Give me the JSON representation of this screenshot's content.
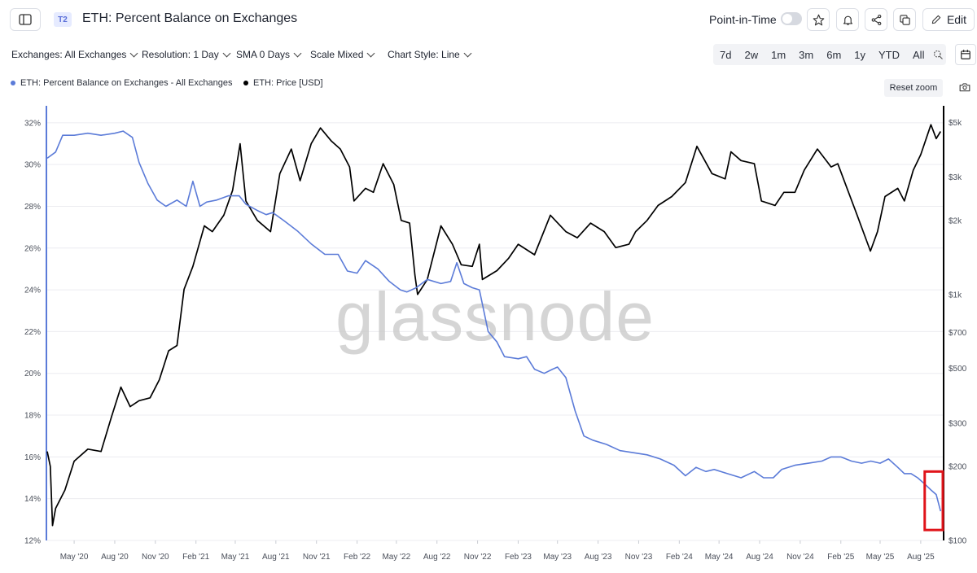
{
  "header": {
    "badge": "T2",
    "title": "ETH: Percent Balance on Exchanges",
    "point_in_time_label": "Point-in-Time",
    "edit_label": "Edit"
  },
  "toolbar": {
    "exchanges": "Exchanges: All Exchanges",
    "resolution": "Resolution: 1 Day",
    "sma": "SMA 0 Days",
    "scale": "Scale Mixed",
    "chart_style": "Chart Style: Line",
    "ranges": [
      "7d",
      "2w",
      "1m",
      "3m",
      "6m",
      "1y",
      "YTD",
      "All"
    ]
  },
  "legend": {
    "series1": "ETH: Percent Balance on Exchanges - All Exchanges",
    "series2": "ETH: Price [USD]",
    "reset_zoom": "Reset zoom"
  },
  "watermark": "glassnode",
  "colors": {
    "balance": "#5b7bd8",
    "price": "#000000",
    "highlight": "#e0141a"
  },
  "chart_data": {
    "type": "line",
    "x_ticks": [
      "May '20",
      "Aug '20",
      "Nov '20",
      "Feb '21",
      "May '21",
      "Aug '21",
      "Nov '21",
      "Feb '22",
      "May '22",
      "Aug '22",
      "Nov '22",
      "Feb '23",
      "May '23",
      "Aug '23",
      "Nov '23",
      "Feb '24",
      "May '24",
      "Aug '24",
      "Nov '24",
      "Feb '25",
      "May '25",
      "Aug '25"
    ],
    "y_left_ticks": [
      "32%",
      "30%",
      "28%",
      "26%",
      "24%",
      "22%",
      "20%",
      "18%",
      "16%",
      "14%",
      "12%"
    ],
    "y_left_range": [
      12,
      32.5
    ],
    "y_right_scale": "log",
    "y_right_ticks": [
      {
        "label": "$5k",
        "value": 5000
      },
      {
        "label": "$3k",
        "value": 3000
      },
      {
        "label": "$2k",
        "value": 2000
      },
      {
        "label": "$1k",
        "value": 1000
      },
      {
        "label": "$700",
        "value": 700
      },
      {
        "label": "$500",
        "value": 500
      },
      {
        "label": "$300",
        "value": 300
      },
      {
        "label": "$200",
        "value": 200
      },
      {
        "label": "$100",
        "value": 100
      }
    ],
    "y_right_range": [
      100,
      5500
    ],
    "x_range": [
      "2020-03-01",
      "2025-09-20"
    ],
    "grid": true,
    "series": [
      {
        "name": "ETH: Percent Balance on Exchanges - All Exchanges",
        "axis": "left",
        "color": "#5b7bd8",
        "points": [
          [
            "2020-03-01",
            30.3
          ],
          [
            "2020-03-20",
            30.6
          ],
          [
            "2020-04-05",
            31.4
          ],
          [
            "2020-05-01",
            31.4
          ],
          [
            "2020-06-01",
            31.5
          ],
          [
            "2020-07-01",
            31.4
          ],
          [
            "2020-08-01",
            31.5
          ],
          [
            "2020-08-20",
            31.6
          ],
          [
            "2020-09-10",
            31.3
          ],
          [
            "2020-09-25",
            30.1
          ],
          [
            "2020-10-15",
            29.1
          ],
          [
            "2020-11-05",
            28.3
          ],
          [
            "2020-11-25",
            28.0
          ],
          [
            "2020-12-20",
            28.3
          ],
          [
            "2021-01-10",
            28.0
          ],
          [
            "2021-01-25",
            29.2
          ],
          [
            "2021-02-10",
            28.0
          ],
          [
            "2021-02-25",
            28.2
          ],
          [
            "2021-03-20",
            28.3
          ],
          [
            "2021-04-15",
            28.5
          ],
          [
            "2021-05-10",
            28.5
          ],
          [
            "2021-05-25",
            28.1
          ],
          [
            "2021-06-20",
            27.8
          ],
          [
            "2021-07-10",
            27.6
          ],
          [
            "2021-07-25",
            27.7
          ],
          [
            "2021-08-20",
            27.3
          ],
          [
            "2021-09-20",
            26.8
          ],
          [
            "2021-10-20",
            26.2
          ],
          [
            "2021-11-20",
            25.7
          ],
          [
            "2021-12-20",
            25.7
          ],
          [
            "2022-01-10",
            24.9
          ],
          [
            "2022-02-01",
            24.8
          ],
          [
            "2022-02-20",
            25.4
          ],
          [
            "2022-03-20",
            25.0
          ],
          [
            "2022-04-15",
            24.4
          ],
          [
            "2022-05-10",
            24.0
          ],
          [
            "2022-05-25",
            23.9
          ],
          [
            "2022-06-15",
            24.1
          ],
          [
            "2022-07-10",
            24.5
          ],
          [
            "2022-08-10",
            24.3
          ],
          [
            "2022-09-01",
            24.4
          ],
          [
            "2022-09-15",
            25.3
          ],
          [
            "2022-10-01",
            24.3
          ],
          [
            "2022-10-20",
            24.1
          ],
          [
            "2022-11-05",
            24.0
          ],
          [
            "2022-11-25",
            22.0
          ],
          [
            "2022-12-15",
            21.5
          ],
          [
            "2023-01-01",
            20.8
          ],
          [
            "2023-02-01",
            20.7
          ],
          [
            "2023-02-20",
            20.8
          ],
          [
            "2023-03-10",
            20.2
          ],
          [
            "2023-04-01",
            20.0
          ],
          [
            "2023-04-20",
            20.2
          ],
          [
            "2023-05-01",
            20.3
          ],
          [
            "2023-05-20",
            19.8
          ],
          [
            "2023-06-10",
            18.2
          ],
          [
            "2023-06-30",
            17.0
          ],
          [
            "2023-07-20",
            16.8
          ],
          [
            "2023-08-20",
            16.6
          ],
          [
            "2023-09-20",
            16.3
          ],
          [
            "2023-10-20",
            16.2
          ],
          [
            "2023-11-20",
            16.1
          ],
          [
            "2023-12-20",
            15.9
          ],
          [
            "2024-01-20",
            15.6
          ],
          [
            "2024-02-15",
            15.1
          ],
          [
            "2024-03-10",
            15.5
          ],
          [
            "2024-04-01",
            15.3
          ],
          [
            "2024-04-20",
            15.4
          ],
          [
            "2024-05-20",
            15.2
          ],
          [
            "2024-06-20",
            15.0
          ],
          [
            "2024-07-20",
            15.3
          ],
          [
            "2024-08-10",
            15.0
          ],
          [
            "2024-09-01",
            15.0
          ],
          [
            "2024-09-20",
            15.4
          ],
          [
            "2024-10-20",
            15.6
          ],
          [
            "2024-11-20",
            15.7
          ],
          [
            "2024-12-20",
            15.8
          ],
          [
            "2025-01-10",
            16.0
          ],
          [
            "2025-02-01",
            16.0
          ],
          [
            "2025-02-25",
            15.8
          ],
          [
            "2025-03-20",
            15.7
          ],
          [
            "2025-04-10",
            15.8
          ],
          [
            "2025-05-01",
            15.7
          ],
          [
            "2025-05-20",
            15.9
          ],
          [
            "2025-06-10",
            15.5
          ],
          [
            "2025-06-25",
            15.2
          ],
          [
            "2025-07-10",
            15.2
          ],
          [
            "2025-07-25",
            15.0
          ],
          [
            "2025-08-10",
            14.7
          ],
          [
            "2025-08-25",
            14.4
          ],
          [
            "2025-09-05",
            14.2
          ],
          [
            "2025-09-15",
            13.4
          ]
        ]
      },
      {
        "name": "ETH: Price [USD]",
        "axis": "right",
        "color": "#000000",
        "points": [
          [
            "2020-03-01",
            230
          ],
          [
            "2020-03-08",
            200
          ],
          [
            "2020-03-13",
            115
          ],
          [
            "2020-03-20",
            135
          ],
          [
            "2020-04-10",
            160
          ],
          [
            "2020-05-01",
            210
          ],
          [
            "2020-06-01",
            235
          ],
          [
            "2020-07-01",
            230
          ],
          [
            "2020-07-25",
            320
          ],
          [
            "2020-08-15",
            420
          ],
          [
            "2020-09-05",
            350
          ],
          [
            "2020-09-25",
            370
          ],
          [
            "2020-10-20",
            380
          ],
          [
            "2020-11-10",
            450
          ],
          [
            "2020-12-01",
            590
          ],
          [
            "2020-12-20",
            620
          ],
          [
            "2021-01-05",
            1050
          ],
          [
            "2021-01-25",
            1300
          ],
          [
            "2021-02-20",
            1900
          ],
          [
            "2021-03-10",
            1800
          ],
          [
            "2021-04-05",
            2100
          ],
          [
            "2021-04-25",
            2650
          ],
          [
            "2021-05-12",
            4100
          ],
          [
            "2021-05-25",
            2400
          ],
          [
            "2021-06-20",
            2000
          ],
          [
            "2021-07-20",
            1800
          ],
          [
            "2021-08-10",
            3100
          ],
          [
            "2021-09-05",
            3900
          ],
          [
            "2021-09-25",
            2900
          ],
          [
            "2021-10-20",
            4100
          ],
          [
            "2021-11-10",
            4750
          ],
          [
            "2021-12-05",
            4200
          ],
          [
            "2021-12-25",
            3900
          ],
          [
            "2022-01-15",
            3300
          ],
          [
            "2022-01-25",
            2400
          ],
          [
            "2022-02-20",
            2700
          ],
          [
            "2022-03-10",
            2600
          ],
          [
            "2022-04-01",
            3400
          ],
          [
            "2022-04-25",
            2800
          ],
          [
            "2022-05-12",
            2000
          ],
          [
            "2022-05-31",
            1950
          ],
          [
            "2022-06-12",
            1200
          ],
          [
            "2022-06-18",
            1000
          ],
          [
            "2022-07-10",
            1150
          ],
          [
            "2022-08-10",
            1900
          ],
          [
            "2022-09-05",
            1600
          ],
          [
            "2022-09-25",
            1320
          ],
          [
            "2022-10-20",
            1300
          ],
          [
            "2022-11-05",
            1600
          ],
          [
            "2022-11-12",
            1150
          ],
          [
            "2022-12-15",
            1250
          ],
          [
            "2023-01-10",
            1400
          ],
          [
            "2023-02-01",
            1600
          ],
          [
            "2023-03-10",
            1450
          ],
          [
            "2023-04-15",
            2100
          ],
          [
            "2023-05-20",
            1800
          ],
          [
            "2023-06-15",
            1700
          ],
          [
            "2023-07-15",
            1950
          ],
          [
            "2023-08-15",
            1800
          ],
          [
            "2023-09-10",
            1550
          ],
          [
            "2023-10-10",
            1600
          ],
          [
            "2023-10-25",
            1800
          ],
          [
            "2023-11-20",
            2000
          ],
          [
            "2023-12-15",
            2300
          ],
          [
            "2024-01-15",
            2500
          ],
          [
            "2024-02-15",
            2850
          ],
          [
            "2024-03-12",
            4000
          ],
          [
            "2024-04-15",
            3100
          ],
          [
            "2024-05-15",
            2950
          ],
          [
            "2024-05-28",
            3800
          ],
          [
            "2024-06-20",
            3500
          ],
          [
            "2024-07-20",
            3400
          ],
          [
            "2024-08-05",
            2400
          ],
          [
            "2024-09-05",
            2300
          ],
          [
            "2024-09-25",
            2600
          ],
          [
            "2024-10-20",
            2600
          ],
          [
            "2024-11-10",
            3200
          ],
          [
            "2024-12-10",
            3900
          ],
          [
            "2025-01-10",
            3300
          ],
          [
            "2025-01-25",
            3400
          ],
          [
            "2025-02-15",
            2700
          ],
          [
            "2025-03-10",
            2100
          ],
          [
            "2025-04-09",
            1500
          ],
          [
            "2025-04-25",
            1800
          ],
          [
            "2025-05-12",
            2500
          ],
          [
            "2025-06-10",
            2700
          ],
          [
            "2025-06-25",
            2400
          ],
          [
            "2025-07-15",
            3200
          ],
          [
            "2025-08-01",
            3700
          ],
          [
            "2025-08-24",
            4900
          ],
          [
            "2025-09-05",
            4300
          ],
          [
            "2025-09-15",
            4600
          ]
        ]
      }
    ],
    "annotations": [
      {
        "type": "highlight-box",
        "color": "#e0141a",
        "x_range": [
          "2025-08-10",
          "2025-09-20"
        ],
        "y_range": [
          12.5,
          15.3
        ]
      }
    ]
  }
}
